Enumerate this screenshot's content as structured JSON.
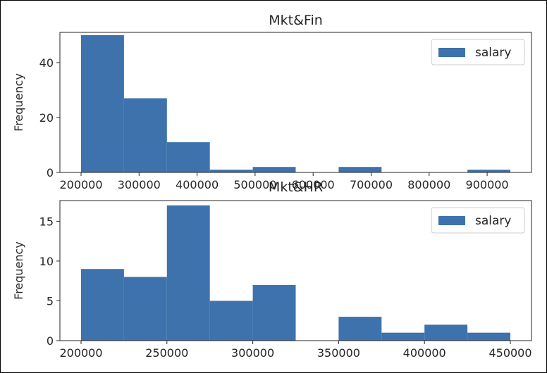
{
  "colors": {
    "bar": "#3d72ad",
    "axis": "#262626",
    "legend_border": "#cccccc"
  },
  "chart_data": [
    {
      "type": "bar",
      "subtype": "histogram",
      "title": "Mkt&Fin",
      "xlabel": "",
      "ylabel": "Frequency",
      "xlim": [
        200000,
        940000
      ],
      "ylim": [
        0,
        51
      ],
      "legend": {
        "position": "top-right",
        "entries": [
          "salary"
        ]
      },
      "grid": false,
      "series": [
        {
          "name": "salary",
          "bins": [
            {
              "start": 200000,
              "end": 274000,
              "count": 50
            },
            {
              "start": 274000,
              "end": 348000,
              "count": 27
            },
            {
              "start": 348000,
              "end": 422000,
              "count": 11
            },
            {
              "start": 422000,
              "end": 496000,
              "count": 1
            },
            {
              "start": 496000,
              "end": 570000,
              "count": 2
            },
            {
              "start": 570000,
              "end": 644000,
              "count": 0
            },
            {
              "start": 644000,
              "end": 718000,
              "count": 2
            },
            {
              "start": 718000,
              "end": 792000,
              "count": 0
            },
            {
              "start": 792000,
              "end": 866000,
              "count": 0
            },
            {
              "start": 866000,
              "end": 940000,
              "count": 1
            }
          ]
        }
      ],
      "x_ticks": [
        {
          "value": 200000,
          "label": "200000"
        },
        {
          "value": 300000,
          "label": "300000"
        },
        {
          "value": 400000,
          "label": "400000"
        },
        {
          "value": 500000,
          "label": "500000"
        },
        {
          "value": 600000,
          "label": "600000"
        },
        {
          "value": 700000,
          "label": "700000"
        },
        {
          "value": 800000,
          "label": "800000"
        },
        {
          "value": 900000,
          "label": "900000"
        }
      ],
      "y_ticks": [
        {
          "value": 0,
          "label": "0"
        },
        {
          "value": 20,
          "label": "20"
        },
        {
          "value": 40,
          "label": "40"
        }
      ]
    },
    {
      "type": "bar",
      "subtype": "histogram",
      "title": "Mkt&HR",
      "xlabel": "",
      "ylabel": "Frequency",
      "xlim": [
        200000,
        450000
      ],
      "ylim": [
        0,
        17.6
      ],
      "legend": {
        "position": "top-right",
        "entries": [
          "salary"
        ]
      },
      "grid": false,
      "series": [
        {
          "name": "salary",
          "bins": [
            {
              "start": 200000,
              "end": 225000,
              "count": 9
            },
            {
              "start": 225000,
              "end": 250000,
              "count": 8
            },
            {
              "start": 250000,
              "end": 275000,
              "count": 17
            },
            {
              "start": 275000,
              "end": 300000,
              "count": 5
            },
            {
              "start": 300000,
              "end": 325000,
              "count": 7
            },
            {
              "start": 325000,
              "end": 350000,
              "count": 0
            },
            {
              "start": 350000,
              "end": 375000,
              "count": 3
            },
            {
              "start": 375000,
              "end": 400000,
              "count": 1
            },
            {
              "start": 400000,
              "end": 425000,
              "count": 2
            },
            {
              "start": 425000,
              "end": 450000,
              "count": 1
            }
          ]
        }
      ],
      "x_ticks": [
        {
          "value": 200000,
          "label": "200000"
        },
        {
          "value": 250000,
          "label": "250000"
        },
        {
          "value": 300000,
          "label": "300000"
        },
        {
          "value": 350000,
          "label": "350000"
        },
        {
          "value": 400000,
          "label": "400000"
        },
        {
          "value": 450000,
          "label": "450000"
        }
      ],
      "y_ticks": [
        {
          "value": 0,
          "label": "0"
        },
        {
          "value": 5,
          "label": "5"
        },
        {
          "value": 10,
          "label": "10"
        },
        {
          "value": 15,
          "label": "15"
        }
      ]
    }
  ]
}
